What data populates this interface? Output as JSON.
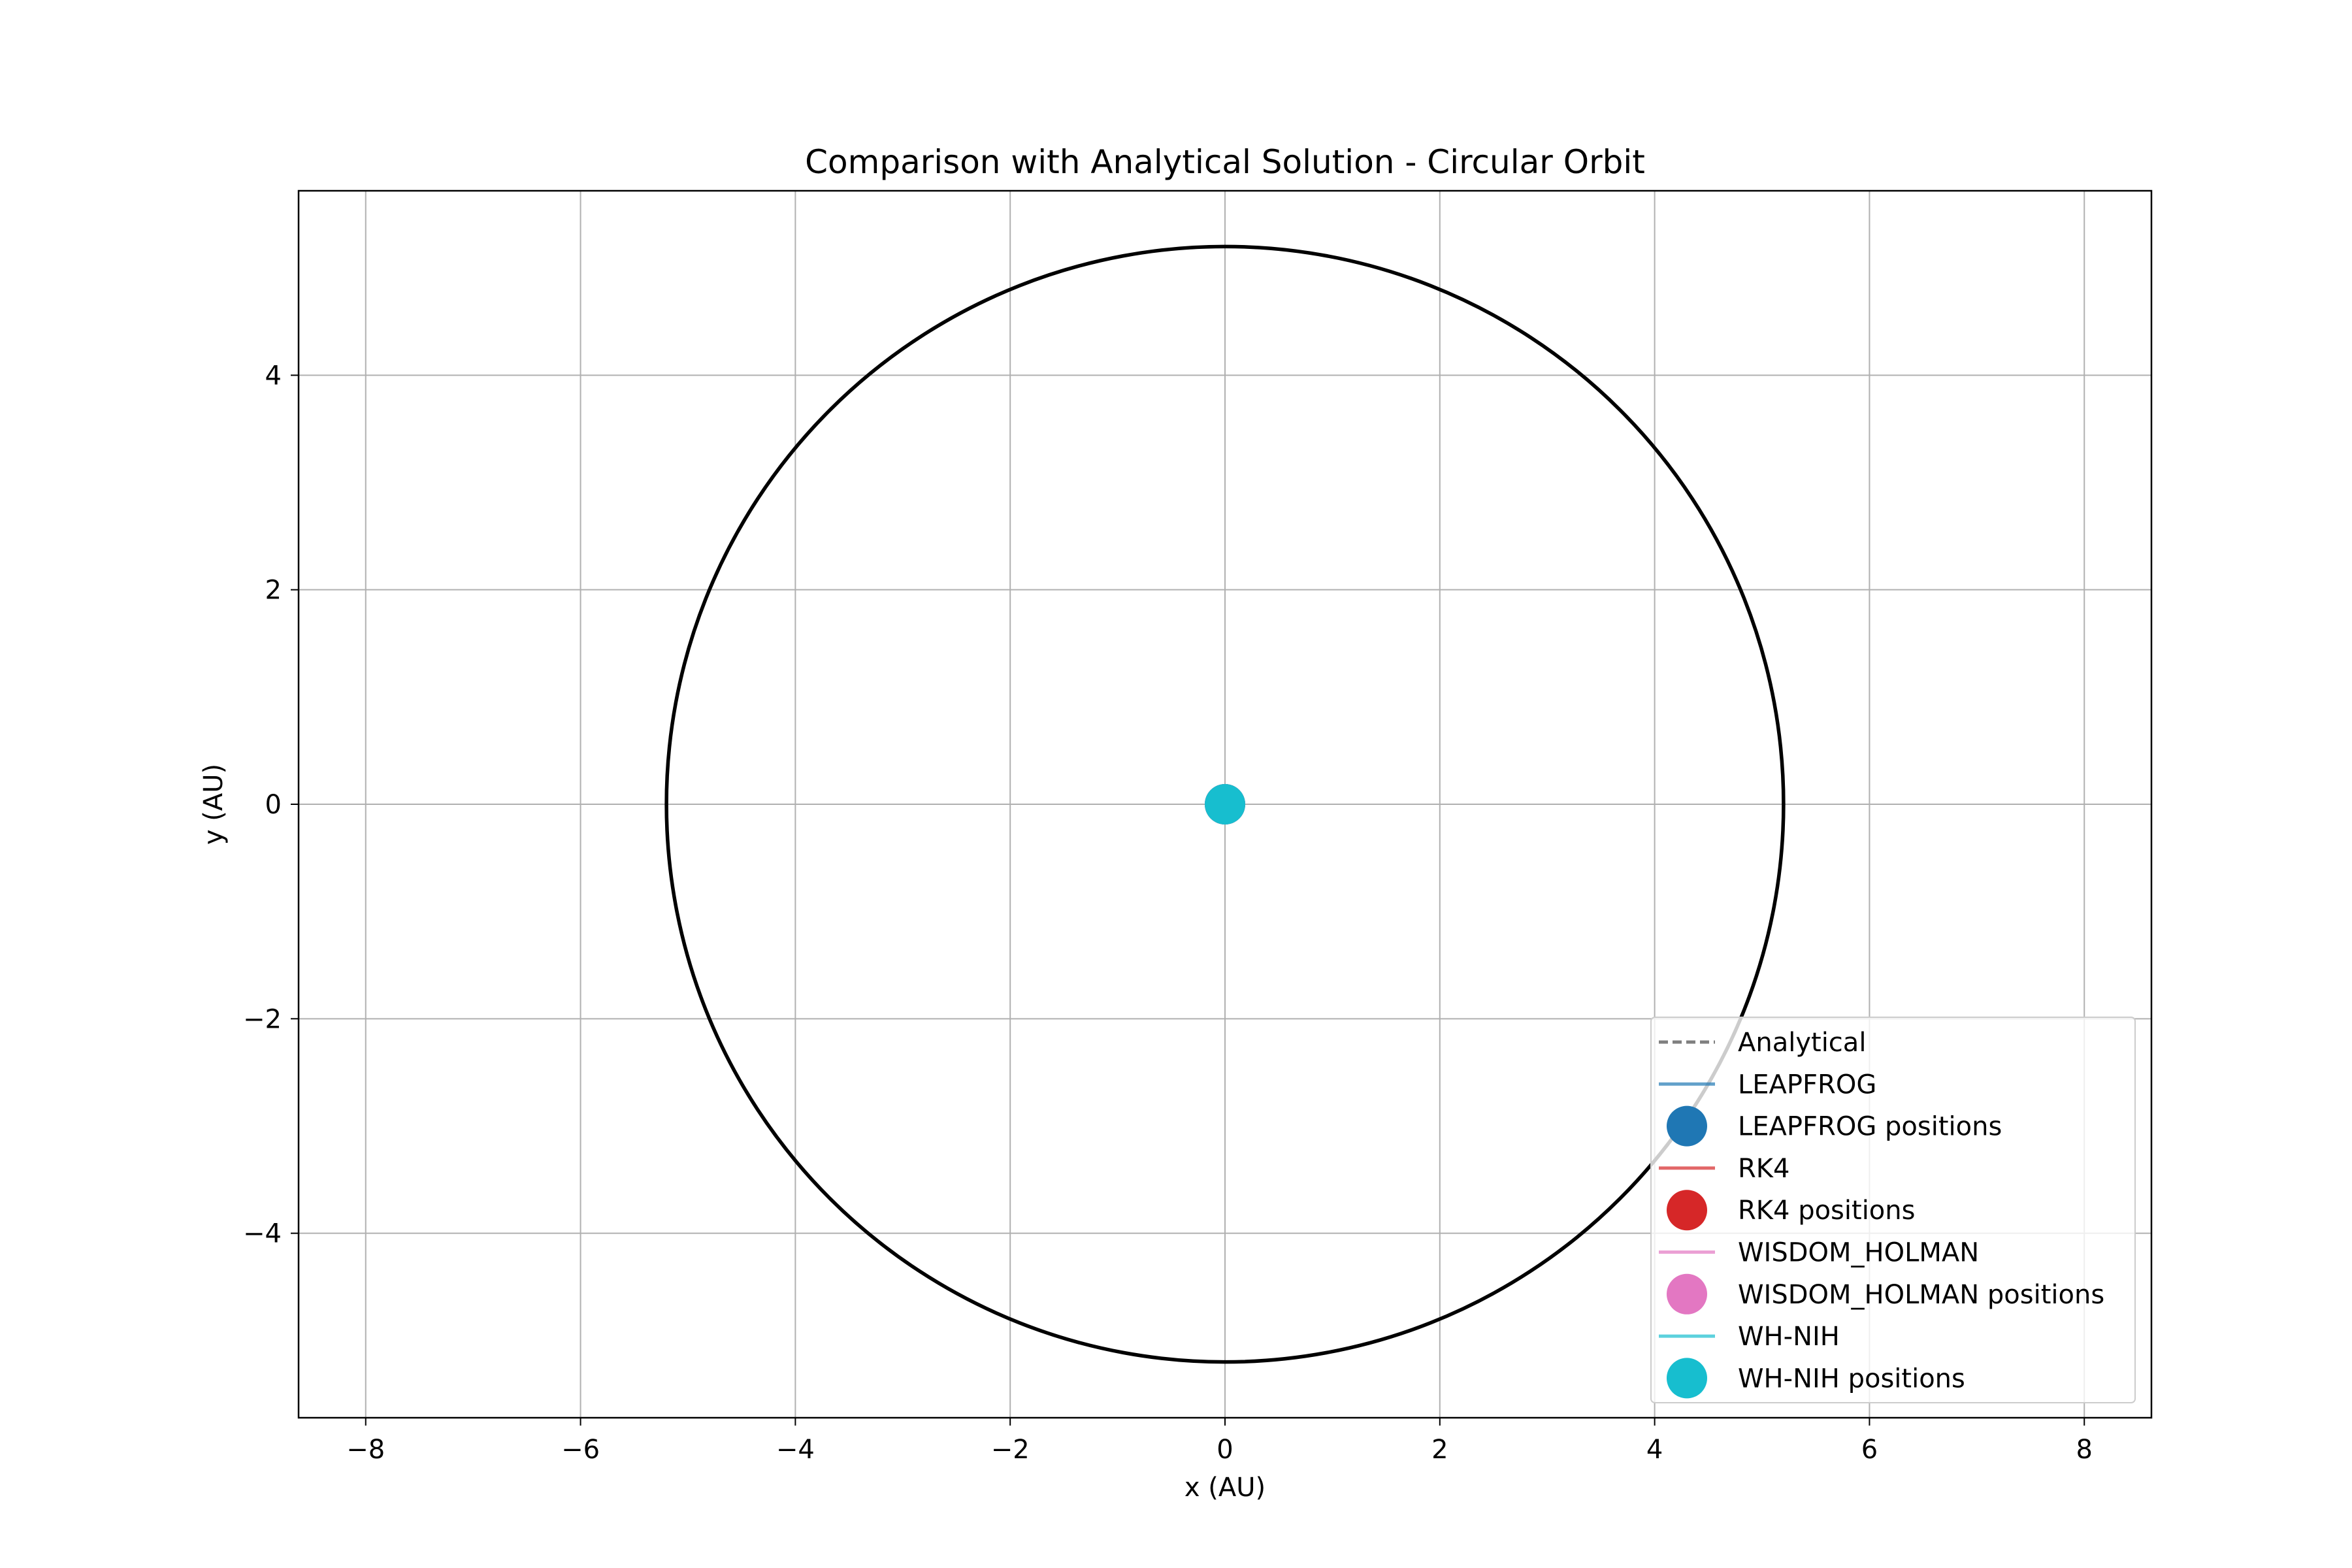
{
  "chart_data": {
    "type": "scatter",
    "title": "Comparison with Analytical Solution - Circular Orbit",
    "xlabel": "x (AU)",
    "ylabel": "y (AU)",
    "xlim": [
      -8.625,
      8.625
    ],
    "ylim": [
      -5.72,
      5.72
    ],
    "xticks": [
      -8,
      -6,
      -4,
      -2,
      0,
      2,
      4,
      6,
      8
    ],
    "yticks": [
      -4,
      -2,
      0,
      2,
      4
    ],
    "grid": true,
    "legend_position": "lower right",
    "series": [
      {
        "name": "Analytical",
        "kind": "line",
        "style": "dashed",
        "color": "#7f7f7f",
        "shape": "circle",
        "center": [
          0,
          0
        ],
        "radius": 5.2
      },
      {
        "name": "LEAPFROG",
        "kind": "line",
        "style": "solid",
        "color": "#1f77b4",
        "shape": "circle",
        "center": [
          0,
          0
        ],
        "radius": 5.2
      },
      {
        "name": "LEAPFROG positions",
        "kind": "marker",
        "color": "#1f77b4",
        "points": [
          [
            0,
            0
          ]
        ]
      },
      {
        "name": "RK4",
        "kind": "line",
        "style": "solid",
        "color": "#d62728",
        "shape": "circle",
        "center": [
          0,
          0
        ],
        "radius": 5.2
      },
      {
        "name": "RK4 positions",
        "kind": "marker",
        "color": "#d62728",
        "points": [
          [
            0,
            0
          ]
        ]
      },
      {
        "name": "WISDOM_HOLMAN",
        "kind": "line",
        "style": "solid",
        "color": "#e377c2",
        "shape": "circle",
        "center": [
          0,
          0
        ],
        "radius": 5.2
      },
      {
        "name": "WISDOM_HOLMAN positions",
        "kind": "marker",
        "color": "#e377c2",
        "points": [
          [
            0,
            0
          ]
        ]
      },
      {
        "name": "WH-NIH",
        "kind": "line",
        "style": "solid",
        "color": "#17becf",
        "shape": "circle",
        "center": [
          0,
          0
        ],
        "radius": 5.2
      },
      {
        "name": "WH-NIH positions",
        "kind": "marker",
        "color": "#17becf",
        "points": [
          [
            0,
            0
          ]
        ]
      }
    ],
    "visible_orbit": {
      "color": "#000000",
      "center": [
        0,
        0
      ],
      "radius": 5.2
    }
  }
}
